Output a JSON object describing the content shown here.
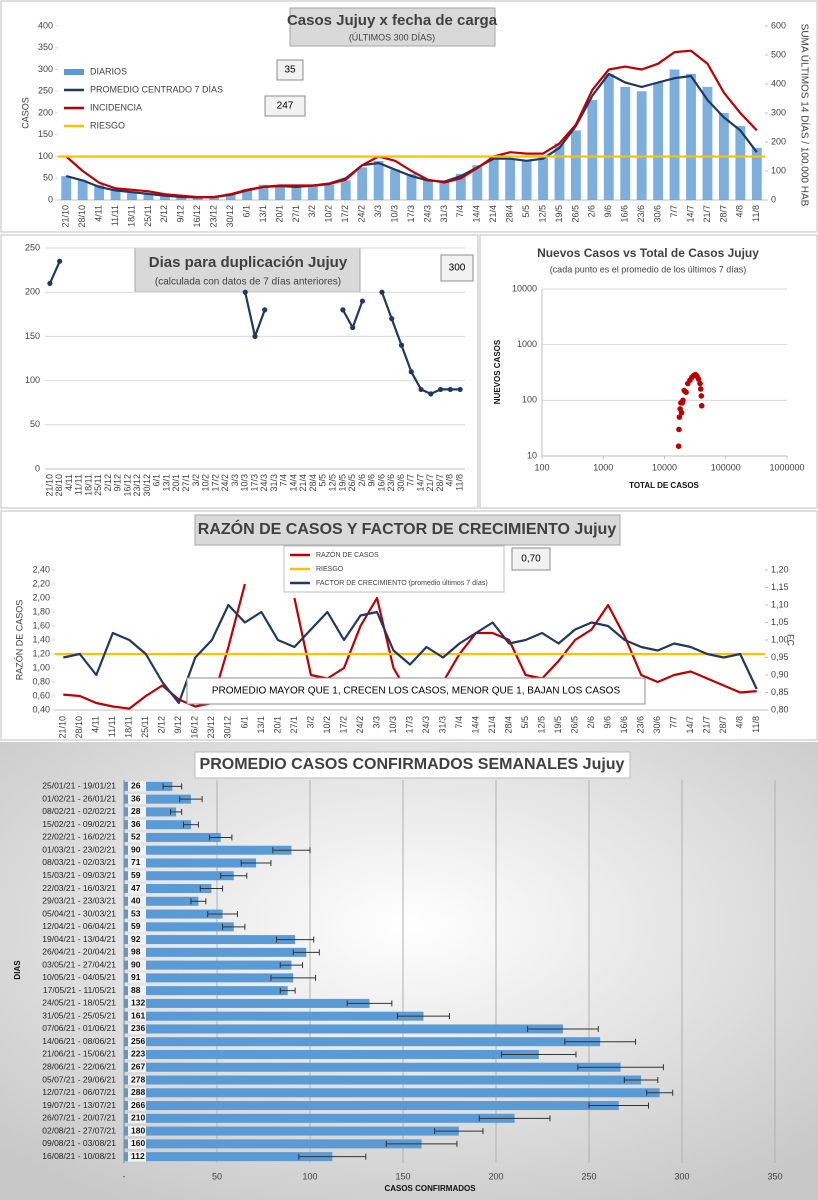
{
  "chart_data": [
    {
      "type": "combo",
      "title": "Casos Jujuy x fecha de carga",
      "subtitle": "(ÚLTIMOS 300 DÍAS)",
      "y_label": "CASOS",
      "y2_label": "SUMA  ÚLTIMOS 14 DÍAS / 100.000 HAB",
      "categories": [
        "21/10",
        "28/10",
        "4/11",
        "11/11",
        "18/11",
        "25/11",
        "2/12",
        "9/12",
        "16/12",
        "23/12",
        "30/12",
        "6/1",
        "13/1",
        "20/1",
        "27/1",
        "3/2",
        "10/2",
        "17/2",
        "24/2",
        "3/3",
        "10/3",
        "17/3",
        "24/3",
        "31/3",
        "7/4",
        "14/4",
        "21/4",
        "28/4",
        "5/5",
        "12/5",
        "19/5",
        "26/5",
        "2/6",
        "9/6",
        "16/6",
        "23/6",
        "30/6",
        "7/7",
        "14/7",
        "21/7",
        "28/7",
        "4/8",
        "11/8"
      ],
      "series": [
        {
          "name": "DIARIOS",
          "type": "bar",
          "color": "#5b9bd5",
          "values": [
            55,
            45,
            35,
            25,
            20,
            15,
            12,
            8,
            6,
            8,
            15,
            25,
            35,
            30,
            30,
            35,
            35,
            45,
            75,
            90,
            70,
            60,
            45,
            45,
            60,
            80,
            100,
            95,
            90,
            100,
            130,
            160,
            230,
            290,
            260,
            250,
            270,
            300,
            290,
            260,
            200,
            170,
            120
          ]
        },
        {
          "name": "PROMEDIO CENTRADO 7 DÍAS",
          "type": "line",
          "color": "#1f3864",
          "values": [
            55,
            45,
            30,
            22,
            18,
            14,
            10,
            7,
            6,
            7,
            12,
            22,
            30,
            32,
            30,
            33,
            38,
            50,
            80,
            85,
            70,
            55,
            45,
            42,
            55,
            75,
            95,
            95,
            90,
            95,
            120,
            170,
            240,
            290,
            270,
            260,
            270,
            280,
            285,
            230,
            190,
            160,
            110
          ]
        },
        {
          "name": "INCIDENCIA",
          "type": "line",
          "axis": "y2",
          "color": "#c00000",
          "values": [
            150,
            100,
            60,
            40,
            35,
            30,
            20,
            15,
            10,
            10,
            20,
            35,
            45,
            50,
            50,
            50,
            55,
            70,
            120,
            150,
            135,
            100,
            70,
            60,
            75,
            110,
            150,
            165,
            160,
            160,
            195,
            260,
            380,
            450,
            460,
            450,
            470,
            510,
            515,
            470,
            370,
            300,
            240
          ]
        },
        {
          "name": "RIESGO",
          "type": "line",
          "color": "#ffc000",
          "value": 100
        }
      ],
      "annotations": [
        "35",
        "247"
      ],
      "legend": "upper left",
      "grid": false,
      "ylim": [
        0,
        400
      ],
      "yticks": [
        0,
        50,
        100,
        150,
        200,
        250,
        300,
        350,
        400
      ],
      "y2lim": [
        0,
        600
      ],
      "y2ticks": [
        0,
        100,
        200,
        300,
        400,
        500,
        600
      ]
    },
    {
      "type": "line",
      "title": "Dias para duplicación Jujuy",
      "subtitle": "(calculada con datos de 7 días anteriores)",
      "categories": [
        "21/10",
        "28/10",
        "4/11",
        "11/11",
        "18/11",
        "25/11",
        "2/12",
        "9/12",
        "16/12",
        "23/12",
        "30/12",
        "6/1",
        "13/1",
        "20/1",
        "27/1",
        "3/2",
        "10/2",
        "17/2",
        "24/2",
        "3/3",
        "10/3",
        "17/3",
        "24/3",
        "31/3",
        "7/4",
        "14/4",
        "21/4",
        "28/4",
        "5/5",
        "12/5",
        "19/5",
        "26/5",
        "2/6",
        "9/6",
        "16/6",
        "23/6",
        "30/6",
        "7/7",
        "14/7",
        "21/7",
        "28/7",
        "4/8",
        "11/8"
      ],
      "series": [
        {
          "name": "Dias para duplicación",
          "type": "line",
          "color": "#1f3864",
          "values": [
            210,
            235,
            null,
            null,
            null,
            null,
            null,
            null,
            null,
            null,
            null,
            null,
            null,
            null,
            null,
            null,
            null,
            null,
            null,
            null,
            200,
            150,
            180,
            null,
            null,
            null,
            null,
            null,
            null,
            null,
            180,
            160,
            190,
            null,
            200,
            170,
            140,
            110,
            90,
            85,
            90,
            90,
            90
          ]
        }
      ],
      "annotations": [
        "300"
      ],
      "grid": true,
      "ylim": [
        0,
        250
      ],
      "yticks": [
        0,
        50,
        100,
        150,
        200,
        250
      ]
    },
    {
      "type": "scatter",
      "title": "Nuevos Casos vs Total de Casos Jujuy",
      "subtitle": "(cada punto es el promedio de los últimos 7 días)",
      "x_label": "TOTAL DE CASOS",
      "y_label": "NUEVOS  CASOS",
      "x": [
        17000,
        17200,
        17500,
        18000,
        18500,
        19000,
        19500,
        20000,
        21000,
        22500,
        24000,
        26000,
        28000,
        30000,
        32000,
        34000,
        36000,
        38000,
        39000,
        40000,
        40500
      ],
      "series": [
        {
          "name": "Nuevos Casos",
          "color": "#c00000",
          "values": [
            15,
            30,
            50,
            70,
            90,
            60,
            90,
            100,
            150,
            140,
            200,
            230,
            260,
            280,
            290,
            270,
            240,
            200,
            160,
            120,
            80
          ]
        }
      ],
      "log_x": true,
      "log_y": true,
      "grid": true,
      "xlim": [
        100,
        1000000
      ],
      "xticks": [
        100,
        1000,
        10000,
        100000,
        1000000
      ],
      "ylim": [
        10,
        10000
      ],
      "yticks": [
        10,
        100,
        1000,
        10000
      ]
    },
    {
      "type": "combo",
      "title": "RAZÓN DE CASOS Y FACTOR DE CRECIMIENTO Jujuy",
      "y_label": "RAZÓN DE CASOS",
      "y2_label": "FC",
      "categories": [
        "21/10",
        "28/10",
        "4/11",
        "11/11",
        "18/11",
        "25/11",
        "2/12",
        "9/12",
        "16/12",
        "23/12",
        "30/12",
        "6/1",
        "13/1",
        "20/1",
        "27/1",
        "3/2",
        "10/2",
        "17/2",
        "24/2",
        "3/3",
        "10/3",
        "17/3",
        "24/3",
        "31/3",
        "7/4",
        "14/4",
        "21/4",
        "28/4",
        "5/5",
        "12/5",
        "19/5",
        "26/5",
        "2/6",
        "9/6",
        "16/6",
        "23/6",
        "30/6",
        "7/7",
        "14/7",
        "21/7",
        "28/7",
        "4/8",
        "11/8"
      ],
      "series": [
        {
          "name": "RAZÓN DE CASOS",
          "type": "line",
          "color": "#c00000",
          "values": [
            0.62,
            0.6,
            0.5,
            0.45,
            0.42,
            0.6,
            0.75,
            0.55,
            0.45,
            0.5,
            1.3,
            2.2,
            null,
            null,
            2.0,
            0.9,
            0.85,
            1.0,
            1.6,
            2.0,
            1.0,
            0.6,
            0.6,
            0.8,
            1.2,
            1.5,
            1.5,
            1.4,
            0.9,
            0.85,
            1.1,
            1.4,
            1.55,
            1.9,
            1.45,
            0.9,
            0.8,
            0.9,
            0.95,
            0.85,
            0.75,
            0.65,
            0.67
          ]
        },
        {
          "name": "RIESGO",
          "type": "line",
          "color": "#ffc000",
          "value": 1.2
        },
        {
          "name": "FACTOR DE CRECIMIENTO (promedio últimos 7 días)",
          "type": "line",
          "axis": "y2",
          "color": "#1f3864",
          "values": [
            0.95,
            0.96,
            0.9,
            1.02,
            1.0,
            0.96,
            0.88,
            0.82,
            0.95,
            1.0,
            1.1,
            1.05,
            1.08,
            1.0,
            0.98,
            1.03,
            1.08,
            1.0,
            1.07,
            1.08,
            0.97,
            0.93,
            0.98,
            0.95,
            0.99,
            1.02,
            1.05,
            0.99,
            1.0,
            1.02,
            0.99,
            1.03,
            1.05,
            1.04,
            1.0,
            0.98,
            0.97,
            0.99,
            0.98,
            0.96,
            0.95,
            0.96,
            0.86
          ]
        }
      ],
      "annotations": [
        "0,70",
        "PROMEDIO MAYOR QUE 1, CRECEN LOS CASOS, MENOR QUE 1, BAJAN LOS CASOS"
      ],
      "legend": "upper center",
      "grid": false,
      "ylim": [
        0.4,
        2.4
      ],
      "yticks": [
        {
          "value": 0.4,
          "label": "0,40"
        },
        {
          "value": 0.6,
          "label": "0,60"
        },
        {
          "value": 0.8,
          "label": "0,80"
        },
        {
          "value": 1.0,
          "label": "1,00"
        },
        {
          "value": 1.2,
          "label": "1,20"
        },
        {
          "value": 1.4,
          "label": "1,40"
        },
        {
          "value": 1.6,
          "label": "1,60"
        },
        {
          "value": 1.8,
          "label": "1,80"
        },
        {
          "value": 2.0,
          "label": "2,00"
        },
        {
          "value": 2.2,
          "label": "2,20"
        },
        {
          "value": 2.4,
          "label": "2,40"
        }
      ],
      "y2lim": [
        0.8,
        1.2
      ],
      "y2ticks": [
        {
          "value": 0.8,
          "label": "0,80"
        },
        {
          "value": 0.85,
          "label": "0,85"
        },
        {
          "value": 0.9,
          "label": "0,90"
        },
        {
          "value": 0.95,
          "label": "0,95"
        },
        {
          "value": 1.0,
          "label": "1,00"
        },
        {
          "value": 1.05,
          "label": "1,05"
        },
        {
          "value": 1.1,
          "label": "1,10"
        },
        {
          "value": 1.15,
          "label": "1,15"
        },
        {
          "value": 1.2,
          "label": "1,20"
        }
      ]
    },
    {
      "type": "hbar",
      "title": "PROMEDIO CASOS CONFIRMADOS SEMANALES Jujuy",
      "y_label": "DIAS",
      "x_label": "CASOS CONFIRMADOS",
      "color": "#5b9bd5",
      "grid": true,
      "categories": [
        "25/01/21 - 19/01/21",
        "01/02/21 - 26/01/21",
        "08/02/21 - 02/02/21",
        "15/02/21 - 09/02/21",
        "22/02/21 - 16/02/21",
        "01/03/21 - 23/02/21",
        "08/03/21 - 02/03/21",
        "15/03/21 - 09/03/21",
        "22/03/21 - 16/03/21",
        "29/03/21 - 23/03/21",
        "05/04/21 - 30/03/21",
        "12/04/21 - 06/04/21",
        "19/04/21 - 13/04/21",
        "26/04/21 - 20/04/21",
        "03/05/21 - 27/04/21",
        "10/05/21 - 04/05/21",
        "17/05/21 - 11/05/21",
        "24/05/21 - 18/05/21",
        "31/05/21 - 25/05/21",
        "07/06/21 - 01/06/21",
        "14/06/21 - 08/06/21",
        "21/06/21 - 15/06/21",
        "28/06/21 - 22/06/21",
        "05/07/21 - 29/06/21",
        "12/07/21 - 06/07/21",
        "19/07/21 - 13/07/21",
        "26/07/21 - 20/07/21",
        "02/08/21 - 27/07/21",
        "09/08/21 - 03/08/21",
        "16/08/21 - 10/08/21"
      ],
      "values": [
        26,
        36,
        28,
        36,
        52,
        90,
        71,
        59,
        47,
        40,
        53,
        59,
        92,
        98,
        90,
        91,
        88,
        132,
        161,
        236,
        256,
        223,
        267,
        278,
        288,
        266,
        210,
        180,
        160,
        112
      ],
      "errors": [
        5,
        6,
        3,
        4,
        6,
        10,
        8,
        7,
        6,
        4,
        8,
        6,
        10,
        7,
        6,
        12,
        4,
        12,
        14,
        19,
        19,
        20,
        23,
        9,
        7,
        16,
        19,
        13,
        19,
        18
      ],
      "xlim": [
        0,
        350
      ],
      "xticks": [
        {
          "value": 0,
          "label": "-"
        },
        50,
        100,
        150,
        200,
        250,
        300,
        350
      ]
    }
  ]
}
